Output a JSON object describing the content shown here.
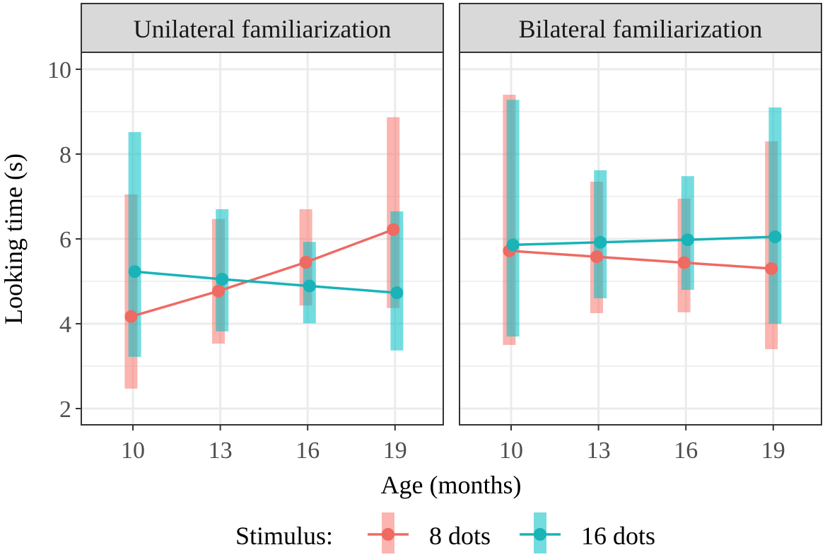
{
  "chart_data": {
    "type": "line",
    "xlabel": "Age (months)",
    "ylabel": "Looking time (s)",
    "x": [
      10,
      13,
      16,
      19
    ],
    "xlim": [
      8.0,
      20.5
    ],
    "ylim": [
      1.7,
      10.4
    ],
    "yticks": [
      2,
      4,
      6,
      8,
      10
    ],
    "xticks": [
      10,
      13,
      16,
      19
    ],
    "grid": true,
    "legend": {
      "title": "Stimulus:",
      "position": "bottom",
      "entries": [
        "8 dots",
        "16 dots"
      ]
    },
    "panels": [
      {
        "title": "Unilateral familiarization",
        "series": [
          {
            "name": "8 dots",
            "color": "#F8766D",
            "mean": [
              4.17,
              4.77,
              5.45,
              6.22
            ],
            "lower": [
              2.47,
              3.53,
              4.43,
              4.37
            ],
            "upper": [
              7.05,
              6.47,
              6.7,
              8.87
            ]
          },
          {
            "name": "16 dots",
            "color": "#00BFC4",
            "mean": [
              5.23,
              5.05,
              4.89,
              4.73
            ],
            "lower": [
              3.22,
              3.82,
              4.01,
              3.37
            ],
            "upper": [
              8.52,
              6.7,
              5.93,
              6.65
            ]
          }
        ]
      },
      {
        "title": "Bilateral familiarization",
        "series": [
          {
            "name": "8 dots",
            "color": "#F8766D",
            "mean": [
              5.72,
              5.58,
              5.44,
              5.3
            ],
            "lower": [
              3.5,
              4.25,
              4.27,
              3.4
            ],
            "upper": [
              9.4,
              7.35,
              6.95,
              8.3
            ]
          },
          {
            "name": "16 dots",
            "color": "#00BFC4",
            "mean": [
              5.86,
              5.92,
              5.98,
              6.05
            ],
            "lower": [
              3.7,
              4.6,
              4.8,
              4.0
            ],
            "upper": [
              9.28,
              7.62,
              7.48,
              9.1
            ]
          }
        ]
      }
    ]
  },
  "colors": {
    "series_8_dots": "#F8766D",
    "series_16_dots": "#00BFC4",
    "line_8_dots": "#EE6A62",
    "line_16_dots": "#19B3B8",
    "strip_background": "#D9D9D9",
    "grid": "#EBEBEB",
    "frame": "#333333"
  }
}
